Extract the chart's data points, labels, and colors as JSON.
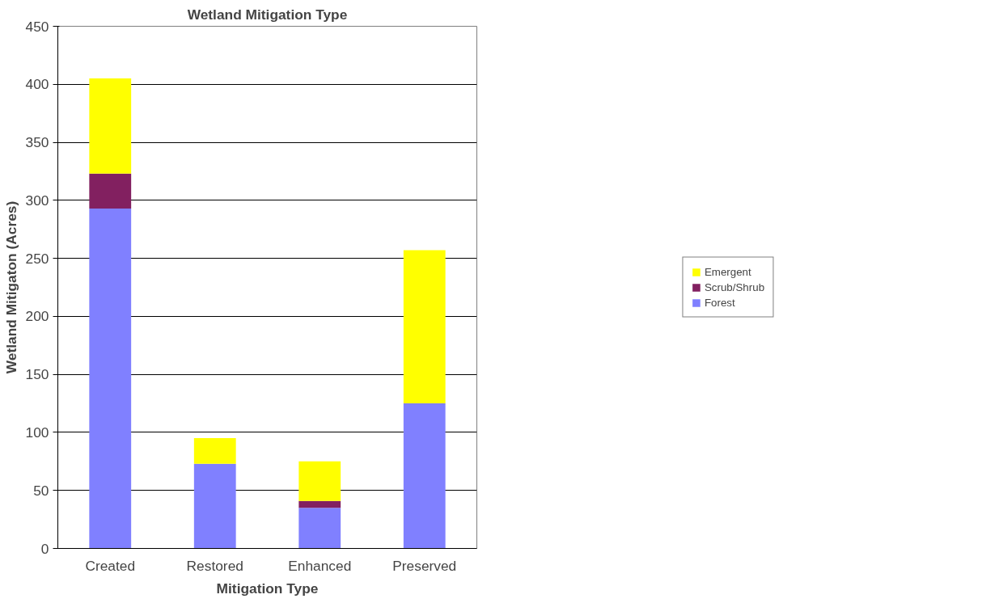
{
  "chart_data": {
    "type": "bar",
    "title": "Wetland Mitigation Type",
    "xlabel": "Mitigation Type",
    "ylabel": "Wetland Mitigaton (Acres)",
    "categories": [
      "Created",
      "Restored",
      "Enhanced",
      "Preserved"
    ],
    "stacked": true,
    "series": [
      {
        "name": "Forest",
        "color": "#8080ff",
        "values": [
          293,
          73,
          35,
          125
        ]
      },
      {
        "name": "Scrub/Shrub",
        "color": "#822060",
        "values": [
          30,
          0,
          6,
          0
        ]
      },
      {
        "name": "Emergent",
        "color": "#ffff00",
        "values": [
          82,
          22,
          34,
          132
        ]
      }
    ],
    "ylim": [
      0,
      450
    ],
    "yticks": [
      0,
      50,
      100,
      150,
      200,
      250,
      300,
      350,
      400,
      450
    ],
    "grid": "y",
    "legend": "right"
  }
}
